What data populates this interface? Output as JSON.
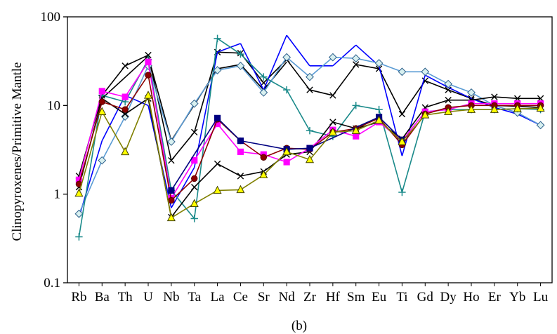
{
  "chart_data": {
    "type": "line",
    "title": "",
    "xlabel": "",
    "ylabel": "Clinopyroxenes/Primitive Mantle",
    "caption": "(b)",
    "yscale": "log",
    "ylim": [
      0.1,
      100
    ],
    "yticks": [
      "0.1",
      "1",
      "10",
      "100"
    ],
    "grid": false,
    "categories": [
      "Rb",
      "Ba",
      "Th",
      "U",
      "Nb",
      "Ta",
      "La",
      "Ce",
      "Sr",
      "Nd",
      "Zr",
      "Hf",
      "Sm",
      "Eu",
      "Ti",
      "Gd",
      "Dy",
      "Ho",
      "Er",
      "Yb",
      "Lu"
    ],
    "series": [
      {
        "color": "#000000",
        "marker": "x",
        "values": [
          1.6,
          13,
          28,
          37,
          2.4,
          5,
          40,
          39,
          18,
          33,
          15,
          13,
          29,
          26,
          8,
          19,
          15,
          12,
          10,
          9.8,
          9.5
        ]
      },
      {
        "color": "#000000",
        "marker": "none",
        "values": [
          null,
          12,
          null,
          36,
          4,
          null,
          26,
          29,
          15,
          31,
          null,
          null,
          null,
          null,
          null,
          null,
          null,
          null,
          null,
          null,
          null
        ]
      },
      {
        "color": "#0000ff",
        "marker": "none",
        "values": [
          0.55,
          4,
          13,
          10,
          0.7,
          2,
          40,
          50,
          15,
          62,
          28,
          28,
          48,
          28,
          2.7,
          22,
          16,
          12,
          9.5,
          8,
          6
        ]
      },
      {
        "color": "#5a9bd4",
        "marker": "diamond",
        "values": [
          0.6,
          2.4,
          7.5,
          28,
          3.9,
          10.5,
          25,
          28,
          14,
          35,
          21,
          35,
          34,
          30,
          24,
          24,
          17.5,
          14,
          10,
          8.3,
          6
        ]
      },
      {
        "color": "#1a8a8a",
        "marker": "plus",
        "values": [
          0.33,
          13,
          11,
          33,
          1.1,
          0.53,
          57,
          38,
          21,
          15,
          5.2,
          4.5,
          10,
          9,
          1.05,
          8.5,
          9,
          9,
          9,
          9.2,
          9
        ]
      },
      {
        "color": "#000000",
        "marker": "x",
        "values": [
          1.2,
          12,
          8,
          12,
          0.55,
          1.2,
          2.2,
          1.6,
          1.8,
          2.8,
          3,
          6.5,
          5.5,
          6.5,
          4.2,
          9.5,
          11.5,
          11.5,
          12.5,
          12,
          12
        ]
      },
      {
        "color": "#ff00ff",
        "marker": "square",
        "values": [
          1.45,
          14.5,
          12.5,
          31,
          0.9,
          2.4,
          6.2,
          3,
          2.8,
          2.3,
          3.3,
          5.3,
          4.5,
          6.5,
          4,
          8.5,
          9,
          10.5,
          10.5,
          10.5,
          10.5
        ]
      },
      {
        "color": "#8b0000",
        "marker": "circle",
        "values": [
          1.3,
          11,
          9,
          22,
          0.85,
          1.5,
          7,
          4,
          2.6,
          3.3,
          3.2,
          5,
          5.5,
          7.2,
          3.6,
          8,
          9.5,
          10,
          10,
          10,
          10
        ]
      },
      {
        "color": "#000080",
        "marker": "square",
        "values": [
          null,
          null,
          null,
          null,
          1.1,
          null,
          7.2,
          4,
          null,
          3.2,
          3.3,
          null,
          null,
          7.4,
          4.1,
          null,
          null,
          null,
          null,
          null,
          null
        ]
      },
      {
        "color": "#808000",
        "marker": "triangle",
        "values": [
          1.02,
          8.5,
          3,
          13,
          0.54,
          0.78,
          1.1,
          1.12,
          1.65,
          3,
          2.45,
          5,
          5.2,
          6.8,
          3.9,
          7.8,
          8.5,
          9,
          9,
          9.2,
          9.3
        ]
      }
    ]
  }
}
